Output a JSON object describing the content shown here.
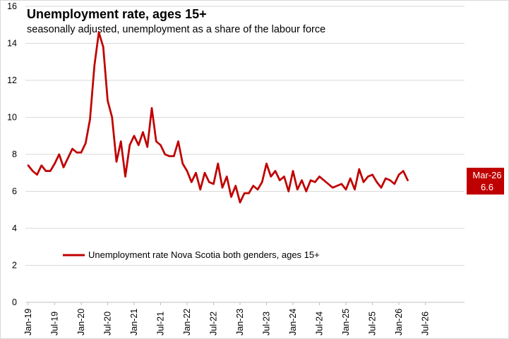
{
  "chart_data": {
    "type": "line",
    "title": "Unemployment rate, ages 15+",
    "subtitle": "seasonally adjusted, unemployment as a share of the labour force",
    "xlabel": "",
    "ylabel": "",
    "ylim": [
      0,
      16
    ],
    "yticks": [
      0,
      2,
      4,
      6,
      8,
      10,
      12,
      14,
      16
    ],
    "xticks": [
      "Jan-19",
      "Jul-19",
      "Jan-20",
      "Jul-20",
      "Jan-21",
      "Jul-21",
      "Jan-22",
      "Jul-22",
      "Jan-23",
      "Jul-23",
      "Jan-24",
      "Jul-24",
      "Jan-25",
      "Jul-25",
      "Jan-26",
      "Jul-26"
    ],
    "x_start": "Jan-19",
    "x_months_total": 96,
    "grid": true,
    "legend_position": "lower-left",
    "series": [
      {
        "name": "Unemployment rate Nova Scotia both genders, ages 15+",
        "color": "#c00000",
        "values": [
          7.4,
          7.1,
          6.9,
          7.4,
          7.1,
          7.1,
          7.5,
          8.0,
          7.3,
          7.8,
          8.3,
          8.1,
          8.1,
          8.6,
          9.9,
          12.8,
          14.6,
          13.8,
          10.9,
          10.0,
          7.6,
          8.7,
          6.8,
          8.5,
          9.0,
          8.5,
          9.2,
          8.4,
          10.5,
          8.7,
          8.5,
          8.0,
          7.9,
          7.9,
          8.7,
          7.5,
          7.1,
          6.5,
          7.0,
          6.1,
          7.0,
          6.5,
          6.4,
          7.5,
          6.2,
          6.8,
          5.7,
          6.3,
          5.4,
          5.9,
          5.9,
          6.3,
          6.1,
          6.5,
          7.5,
          6.8,
          7.1,
          6.6,
          6.8,
          6.0,
          7.1,
          6.1,
          6.6,
          6.0,
          6.6,
          6.5,
          6.8,
          6.6,
          6.4,
          6.2,
          6.3,
          6.4,
          6.1,
          6.7,
          6.1,
          7.2,
          6.5,
          6.8,
          6.9,
          6.5,
          6.2,
          6.7,
          6.6,
          6.4,
          6.9,
          7.1,
          6.6
        ]
      }
    ],
    "callout": {
      "label": "Mar-26",
      "value": "6.6",
      "color": "#c00000"
    }
  }
}
